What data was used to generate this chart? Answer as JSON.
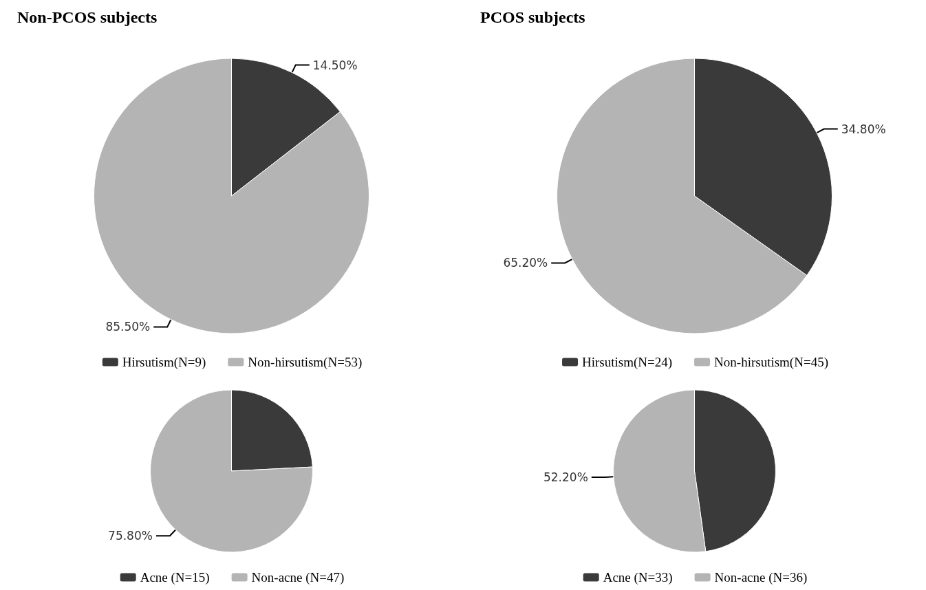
{
  "chart_data": [
    {
      "type": "pie",
      "title": "Non-PCOS subjects",
      "categories": [
        "Hirsutism(N=9)",
        "Non-hirsutism(N=53)"
      ],
      "values": [
        14.5,
        85.5
      ],
      "colors": [
        "#3a3a3a",
        "#b4b4b4"
      ],
      "value_labels": [
        "14.50%",
        "85.50%"
      ],
      "legend": "bottom"
    },
    {
      "type": "pie",
      "title": "PCOS subjects",
      "categories": [
        "Hirsutism(N=24)",
        "Non-hirsutism(N=45)"
      ],
      "values": [
        34.8,
        65.2
      ],
      "colors": [
        "#3a3a3a",
        "#b4b4b4"
      ],
      "value_labels": [
        "34.80%",
        "65.20%"
      ],
      "legend": "bottom"
    },
    {
      "type": "pie",
      "categories": [
        "Acne (N=15)",
        "Non-acne (N=47)"
      ],
      "values": [
        24.2,
        75.8
      ],
      "colors": [
        "#3a3a3a",
        "#b4b4b4"
      ],
      "value_labels": [
        null,
        "75.80%"
      ],
      "legend": "bottom"
    },
    {
      "type": "pie",
      "categories": [
        "Acne (N=33)",
        "Non-acne (N=36)"
      ],
      "values": [
        47.8,
        52.2
      ],
      "colors": [
        "#3a3a3a",
        "#b4b4b4"
      ],
      "value_labels": [
        null,
        "52.20%"
      ],
      "legend": "bottom"
    }
  ]
}
